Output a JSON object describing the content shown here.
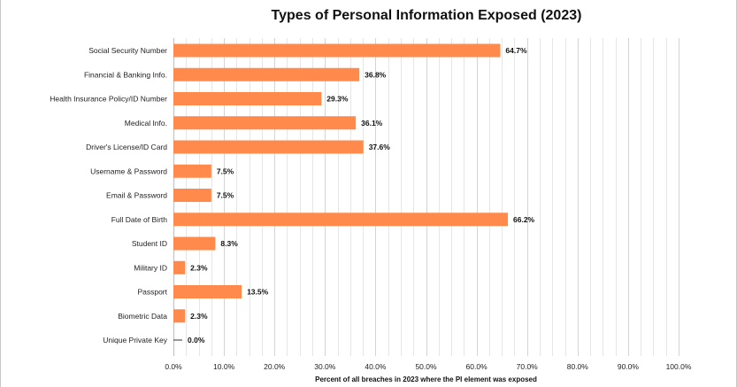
{
  "chart_data": {
    "type": "bar",
    "orientation": "horizontal",
    "title": "Types of Personal Information Exposed (2023)",
    "xlabel": "Percent of all breaches in 2023 where the PI element was exposed",
    "ylabel": "",
    "xlim": [
      0,
      100
    ],
    "grid": true,
    "bar_color": "#FF8A4C",
    "categories": [
      "Social Security Number",
      "Financial & Banking Info.",
      "Health Insurance Policy/ID Number",
      "Medical Info.",
      "Driver's License/ID Card",
      "Username & Password",
      "Email & Password",
      "Full Date of Birth",
      "Student ID",
      "Military ID",
      "Passport",
      "Biometric Data",
      "Unique Private Key"
    ],
    "values": [
      64.7,
      36.8,
      29.3,
      36.1,
      37.6,
      7.5,
      7.5,
      66.2,
      8.3,
      2.3,
      13.5,
      2.3,
      0.0
    ],
    "value_labels": [
      "64.7%",
      "36.8%",
      "29.3%",
      "36.1%",
      "37.6%",
      "7.5%",
      "7.5%",
      "66.2%",
      "8.3%",
      "2.3%",
      "13.5%",
      "2.3%",
      "0.0%"
    ],
    "x_ticks": [
      0,
      10,
      20,
      30,
      40,
      50,
      60,
      70,
      80,
      90,
      100
    ],
    "x_tick_labels": [
      "0.0%",
      "10.0%",
      "20.0%",
      "30.0%",
      "40.0%",
      "50.0%",
      "60.0%",
      "70.0%",
      "80.0%",
      "90.0%",
      "100.0%"
    ]
  }
}
